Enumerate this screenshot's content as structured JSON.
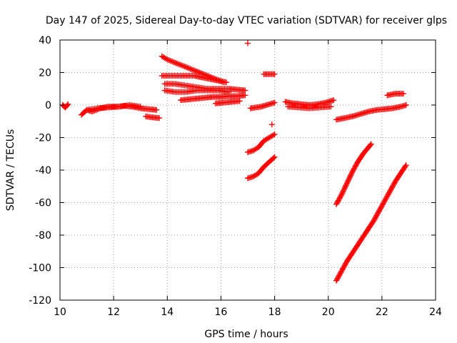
{
  "chart_data": {
    "type": "scatter",
    "title": "Day 147 of 2025, Sidereal Day-to-day VTEC variation (SDTVAR) for receiver glps",
    "xlabel": "GPS time / hours",
    "ylabel": "SDTVAR / TECUs",
    "xlim": [
      10,
      24
    ],
    "ylim": [
      -120,
      40
    ],
    "xticks": [
      10,
      12,
      14,
      16,
      18,
      20,
      22,
      24
    ],
    "yticks": [
      -120,
      -100,
      -80,
      -60,
      -40,
      -20,
      0,
      20,
      40
    ],
    "xtick_labels": [
      "10",
      "12",
      "14",
      "16",
      "18",
      "20",
      "22",
      "24"
    ],
    "ytick_labels": [
      "-120",
      "-100",
      "-80",
      "-60",
      "-40",
      "-20",
      "0",
      "20",
      "40"
    ],
    "grid": true,
    "marker": "+",
    "marker_color": "#ff0000",
    "series": [
      {
        "name": "seg-a",
        "points": [
          [
            10.1,
            0
          ],
          [
            10.2,
            -1.5
          ],
          [
            10.3,
            0.5
          ]
        ]
      },
      {
        "name": "seg-b",
        "points": [
          [
            10.8,
            -6
          ],
          [
            11.0,
            -3
          ],
          [
            11.2,
            -4
          ],
          [
            11.5,
            -2
          ],
          [
            11.8,
            -1
          ],
          [
            12.1,
            -1
          ],
          [
            12.4,
            -0.5
          ],
          [
            12.7,
            -1
          ],
          [
            13.0,
            -2
          ],
          [
            13.3,
            -2.5
          ],
          [
            13.6,
            -3
          ]
        ]
      },
      {
        "name": "seg-c",
        "points": [
          [
            11.0,
            -3
          ],
          [
            11.4,
            -2
          ],
          [
            11.8,
            -1.5
          ],
          [
            12.2,
            -1
          ],
          [
            12.6,
            0
          ],
          [
            13.0,
            -1
          ]
        ]
      },
      {
        "name": "seg-d",
        "points": [
          [
            13.2,
            -7
          ],
          [
            13.4,
            -7.5
          ],
          [
            13.7,
            -8
          ]
        ]
      },
      {
        "name": "seg-e",
        "points": [
          [
            13.8,
            30
          ],
          [
            14.0,
            28
          ],
          [
            14.3,
            26
          ],
          [
            14.6,
            24
          ],
          [
            14.9,
            22
          ],
          [
            15.2,
            20
          ],
          [
            15.5,
            18
          ],
          [
            15.8,
            16
          ],
          [
            16.1,
            14
          ]
        ]
      },
      {
        "name": "seg-f",
        "points": [
          [
            13.8,
            18
          ],
          [
            14.2,
            18
          ],
          [
            14.6,
            18
          ],
          [
            15.0,
            18
          ],
          [
            15.3,
            17
          ],
          [
            15.6,
            16
          ],
          [
            15.9,
            15
          ],
          [
            16.2,
            14
          ]
        ]
      },
      {
        "name": "seg-g",
        "points": [
          [
            13.9,
            13
          ],
          [
            14.3,
            13
          ],
          [
            14.7,
            12
          ],
          [
            15.1,
            11
          ],
          [
            15.5,
            10
          ],
          [
            15.9,
            10
          ],
          [
            16.3,
            10
          ],
          [
            16.6,
            9.5
          ],
          [
            16.9,
            9
          ]
        ]
      },
      {
        "name": "seg-h",
        "points": [
          [
            13.9,
            9
          ],
          [
            14.3,
            8
          ],
          [
            14.7,
            8
          ],
          [
            15.1,
            9
          ],
          [
            15.5,
            9
          ],
          [
            15.9,
            9
          ],
          [
            16.3,
            8
          ]
        ]
      },
      {
        "name": "seg-i",
        "points": [
          [
            14.5,
            3
          ],
          [
            14.8,
            3.5
          ],
          [
            15.1,
            4
          ],
          [
            15.4,
            4.5
          ],
          [
            15.7,
            5
          ],
          [
            16.0,
            5
          ],
          [
            16.3,
            5.5
          ],
          [
            16.6,
            5.5
          ],
          [
            16.9,
            6
          ]
        ]
      },
      {
        "name": "seg-j",
        "points": [
          [
            15.8,
            1
          ],
          [
            16.1,
            1.5
          ],
          [
            16.4,
            2
          ],
          [
            16.7,
            2.5
          ]
        ]
      },
      {
        "name": "seg-k",
        "points": [
          [
            17.0,
            38
          ]
        ]
      },
      {
        "name": "seg-l",
        "points": [
          [
            17.1,
            -2
          ],
          [
            17.3,
            -1.5
          ],
          [
            17.5,
            -1
          ],
          [
            17.7,
            0
          ],
          [
            17.9,
            1
          ],
          [
            18.0,
            1.5
          ]
        ]
      },
      {
        "name": "seg-m",
        "points": [
          [
            17.6,
            19
          ],
          [
            17.8,
            19
          ],
          [
            18.0,
            19
          ]
        ]
      },
      {
        "name": "seg-n",
        "points": [
          [
            17.9,
            -12
          ]
        ]
      },
      {
        "name": "seg-o",
        "points": [
          [
            17.0,
            -29
          ],
          [
            17.2,
            -28
          ],
          [
            17.4,
            -26
          ],
          [
            17.6,
            -22
          ],
          [
            17.8,
            -20
          ],
          [
            18.0,
            -18
          ]
        ]
      },
      {
        "name": "seg-p",
        "points": [
          [
            17.0,
            -45
          ],
          [
            17.2,
            -44
          ],
          [
            17.4,
            -42
          ],
          [
            17.6,
            -38
          ],
          [
            17.8,
            -35
          ],
          [
            18.0,
            -32
          ]
        ]
      },
      {
        "name": "seg-q",
        "points": [
          [
            18.4,
            2
          ],
          [
            18.7,
            1
          ],
          [
            19.0,
            0.5
          ],
          [
            19.3,
            0
          ],
          [
            19.6,
            0.5
          ],
          [
            19.9,
            1.5
          ],
          [
            20.2,
            3
          ]
        ]
      },
      {
        "name": "seg-r",
        "points": [
          [
            18.5,
            -1
          ],
          [
            18.9,
            -1.5
          ],
          [
            19.3,
            -2
          ],
          [
            19.7,
            -1.5
          ],
          [
            20.1,
            -1
          ]
        ]
      },
      {
        "name": "seg-s",
        "points": [
          [
            20.3,
            -9
          ],
          [
            20.6,
            -8
          ],
          [
            20.9,
            -7
          ],
          [
            21.2,
            -5.5
          ],
          [
            21.5,
            -4
          ],
          [
            21.8,
            -3
          ],
          [
            22.1,
            -2.5
          ],
          [
            22.4,
            -2
          ],
          [
            22.7,
            -1
          ],
          [
            22.9,
            0
          ]
        ]
      },
      {
        "name": "seg-t",
        "points": [
          [
            22.2,
            6
          ],
          [
            22.5,
            7
          ],
          [
            22.8,
            7
          ]
        ]
      },
      {
        "name": "seg-u",
        "points": [
          [
            20.3,
            -61
          ],
          [
            20.5,
            -55
          ],
          [
            20.7,
            -48
          ],
          [
            20.9,
            -41
          ],
          [
            21.1,
            -35
          ],
          [
            21.3,
            -30
          ],
          [
            21.5,
            -26
          ],
          [
            21.6,
            -24
          ]
        ]
      },
      {
        "name": "seg-v",
        "points": [
          [
            20.3,
            -108
          ],
          [
            20.5,
            -102
          ],
          [
            20.7,
            -96
          ],
          [
            20.9,
            -91
          ],
          [
            21.1,
            -86
          ],
          [
            21.3,
            -81
          ],
          [
            21.5,
            -76
          ],
          [
            21.7,
            -71
          ],
          [
            21.9,
            -65
          ],
          [
            22.1,
            -59
          ],
          [
            22.3,
            -53
          ],
          [
            22.5,
            -47
          ],
          [
            22.7,
            -42
          ],
          [
            22.9,
            -37
          ]
        ]
      }
    ]
  }
}
